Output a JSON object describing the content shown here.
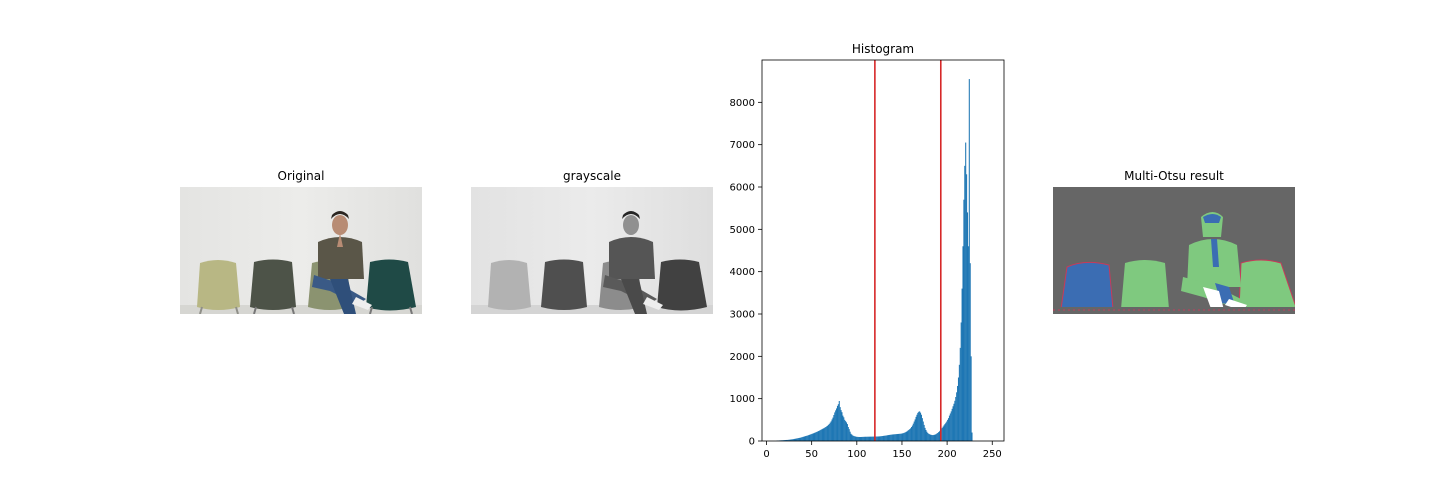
{
  "figure": {
    "panel_titles": {
      "original": "Original",
      "grayscale": "grayscale",
      "histogram": "Histogram",
      "multi_otsu": "Multi-Otsu result"
    }
  },
  "chart_data": {
    "type": "bar",
    "title": "Histogram",
    "xlabel": "",
    "ylabel": "",
    "xlim": [
      -5,
      263
    ],
    "ylim": [
      0,
      9000
    ],
    "x_ticks": [
      0,
      50,
      100,
      150,
      200,
      250
    ],
    "y_ticks": [
      0,
      1000,
      2000,
      3000,
      4000,
      5000,
      6000,
      7000,
      8000
    ],
    "grid": false,
    "bar_color": "#1f77b4",
    "threshold_color": "#d62728",
    "thresholds": [
      120,
      193
    ],
    "bin_width": 1,
    "bins_start": 0,
    "counts": [
      0,
      0,
      0,
      0,
      0,
      0,
      0,
      0,
      0,
      0,
      0,
      10,
      11,
      12,
      14,
      15,
      16,
      17,
      19,
      21,
      22,
      24,
      25,
      26,
      29,
      31,
      34,
      37,
      40,
      44,
      48,
      52,
      56,
      61,
      65,
      70,
      74,
      78,
      85,
      92,
      98,
      104,
      111,
      118,
      124,
      130,
      138,
      146,
      154,
      162,
      170,
      178,
      186,
      196,
      205,
      215,
      224,
      234,
      245,
      257,
      269,
      280,
      292,
      303,
      316,
      330,
      345,
      360,
      382,
      404,
      434,
      464,
      509,
      553,
      614,
      675,
      723,
      770,
      830,
      870,
      945,
      800,
      730,
      680,
      600,
      560,
      500,
      470,
      440,
      400,
      330,
      280,
      220,
      170,
      150,
      130,
      120,
      112,
      106,
      100,
      98,
      96,
      95,
      94,
      95,
      96,
      97,
      98,
      99,
      100,
      100,
      101,
      101,
      102,
      102,
      103,
      103,
      104,
      104,
      105,
      105,
      106,
      106,
      107,
      108,
      110,
      112,
      115,
      118,
      121,
      124,
      127,
      130,
      134,
      138,
      142,
      145,
      148,
      151,
      154,
      156,
      158,
      160,
      162,
      164,
      166,
      168,
      170,
      172,
      175,
      180,
      186,
      194,
      203,
      215,
      228,
      245,
      262,
      280,
      300,
      330,
      365,
      410,
      460,
      510,
      570,
      620,
      665,
      690,
      700,
      670,
      620,
      540,
      460,
      380,
      310,
      260,
      220,
      190,
      170,
      160,
      150,
      145,
      140,
      140,
      145,
      150,
      160,
      175,
      190,
      210,
      230,
      255,
      280,
      310,
      340,
      370,
      400,
      430,
      460,
      500,
      540,
      600,
      650,
      700,
      760,
      820,
      880,
      950,
      1040,
      1150,
      1300,
      1500,
      1800,
      2200,
      2800,
      3600,
      4600,
      5700,
      6500,
      7050,
      6300,
      5400,
      4600,
      8550,
      4200,
      2000,
      200,
      0,
      0,
      0,
      0,
      0,
      0,
      0,
      0,
      0,
      0,
      0,
      0,
      0,
      0,
      0,
      0,
      0,
      0,
      0,
      0,
      0,
      0,
      0,
      0,
      0
    ]
  }
}
